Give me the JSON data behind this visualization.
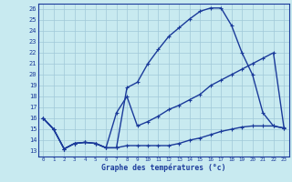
{
  "xlabel": "Graphe des températures (°c)",
  "bg_color": "#c8eaf0",
  "grid_color": "#a0c8d8",
  "line_color": "#1a3a9a",
  "xlim": [
    -0.5,
    23.5
  ],
  "ylim": [
    12.5,
    26.5
  ],
  "yticks": [
    13,
    14,
    15,
    16,
    17,
    18,
    19,
    20,
    21,
    22,
    23,
    24,
    25,
    26
  ],
  "xticks": [
    0,
    1,
    2,
    3,
    4,
    5,
    6,
    7,
    8,
    9,
    10,
    11,
    12,
    13,
    14,
    15,
    16,
    17,
    18,
    19,
    20,
    21,
    22,
    23
  ],
  "line1_x": [
    0,
    1,
    2,
    3,
    4,
    5,
    6,
    7,
    8,
    9,
    10,
    11,
    12,
    13,
    14,
    15,
    16,
    17,
    18,
    19,
    20,
    21,
    22,
    23
  ],
  "line1_y": [
    16.0,
    15.0,
    13.2,
    13.7,
    13.8,
    13.7,
    13.3,
    13.3,
    18.8,
    19.3,
    21.0,
    22.3,
    23.5,
    24.3,
    25.1,
    25.8,
    26.1,
    26.1,
    24.5,
    22.0,
    20.0,
    16.5,
    15.3,
    15.1
  ],
  "line2_x": [
    0,
    1,
    2,
    3,
    4,
    5,
    6,
    7,
    8,
    9,
    10,
    11,
    12,
    13,
    14,
    15,
    16,
    17,
    18,
    19,
    20,
    21,
    22,
    23
  ],
  "line2_y": [
    16.0,
    15.0,
    13.2,
    13.7,
    13.8,
    13.7,
    13.3,
    16.5,
    18.0,
    15.3,
    15.7,
    16.2,
    16.8,
    17.2,
    17.7,
    18.2,
    19.0,
    19.5,
    20.0,
    20.5,
    21.0,
    21.5,
    22.0,
    15.2
  ],
  "line3_x": [
    0,
    1,
    2,
    3,
    4,
    5,
    6,
    7,
    8,
    9,
    10,
    11,
    12,
    13,
    14,
    15,
    16,
    17,
    18,
    19,
    20,
    21,
    22,
    23
  ],
  "line3_y": [
    16.0,
    15.0,
    13.2,
    13.7,
    13.8,
    13.7,
    13.3,
    13.3,
    13.5,
    13.5,
    13.5,
    13.5,
    13.5,
    13.7,
    14.0,
    14.2,
    14.5,
    14.8,
    15.0,
    15.2,
    15.3,
    15.3,
    15.3,
    15.1
  ]
}
